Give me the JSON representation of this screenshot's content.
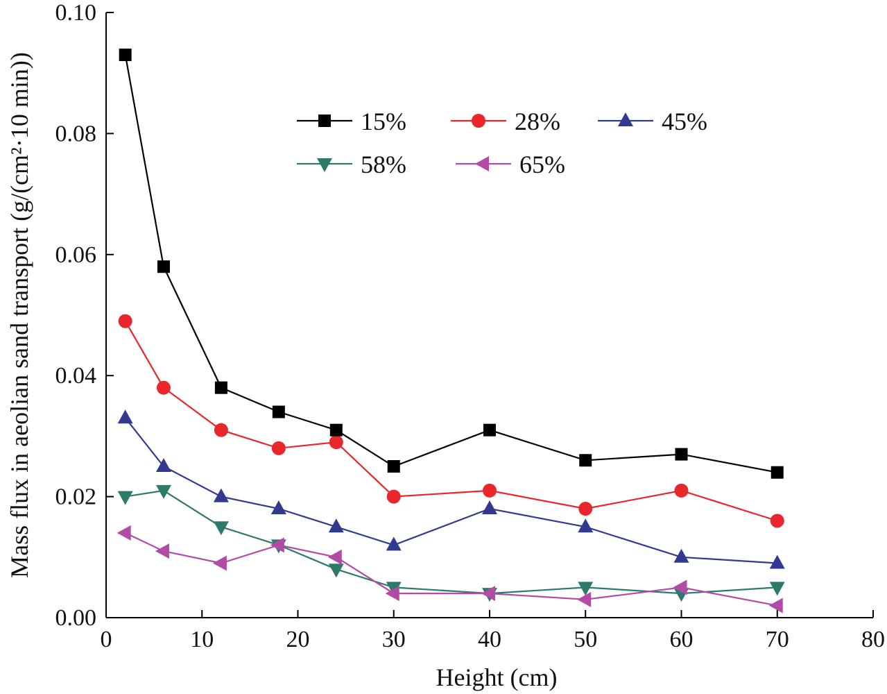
{
  "chart_data": {
    "type": "line",
    "xlabel": "Height (cm)",
    "ylabel": "Mass flux in aeolian sand transport (g/(cm²·10 min))",
    "xlim": [
      0,
      80
    ],
    "ylim": [
      0,
      0.1
    ],
    "xticks": [
      "0",
      "10",
      "20",
      "30",
      "40",
      "50",
      "60",
      "70",
      "80"
    ],
    "yticks": [
      "0.00",
      "0.02",
      "0.04",
      "0.06",
      "0.08",
      "0.10"
    ],
    "grid": false,
    "legend_position": "top-center",
    "x": [
      2,
      6,
      12,
      18,
      24,
      30,
      40,
      50,
      60,
      70
    ],
    "series": [
      {
        "name": "15%",
        "color": "#000000",
        "marker": "square",
        "values": [
          0.093,
          0.058,
          0.038,
          0.034,
          0.031,
          0.025,
          0.031,
          0.026,
          0.027,
          0.024
        ]
      },
      {
        "name": "28%",
        "color": "#e8262b",
        "marker": "circle",
        "values": [
          0.049,
          0.038,
          0.031,
          0.028,
          0.029,
          0.02,
          0.021,
          0.018,
          0.021,
          0.016
        ]
      },
      {
        "name": "45%",
        "color": "#323a8f",
        "marker": "triangle-up",
        "values": [
          0.033,
          0.025,
          0.02,
          0.018,
          0.015,
          0.012,
          0.018,
          0.015,
          0.01,
          0.009
        ]
      },
      {
        "name": "58%",
        "color": "#2e7a6a",
        "marker": "triangle-down",
        "values": [
          0.02,
          0.021,
          0.015,
          0.012,
          0.008,
          0.005,
          0.004,
          0.005,
          0.004,
          0.005
        ]
      },
      {
        "name": "65%",
        "color": "#b24aa6",
        "marker": "triangle-left",
        "values": [
          0.014,
          0.011,
          0.009,
          0.012,
          0.01,
          0.004,
          0.004,
          0.003,
          0.005,
          0.002
        ]
      }
    ]
  }
}
